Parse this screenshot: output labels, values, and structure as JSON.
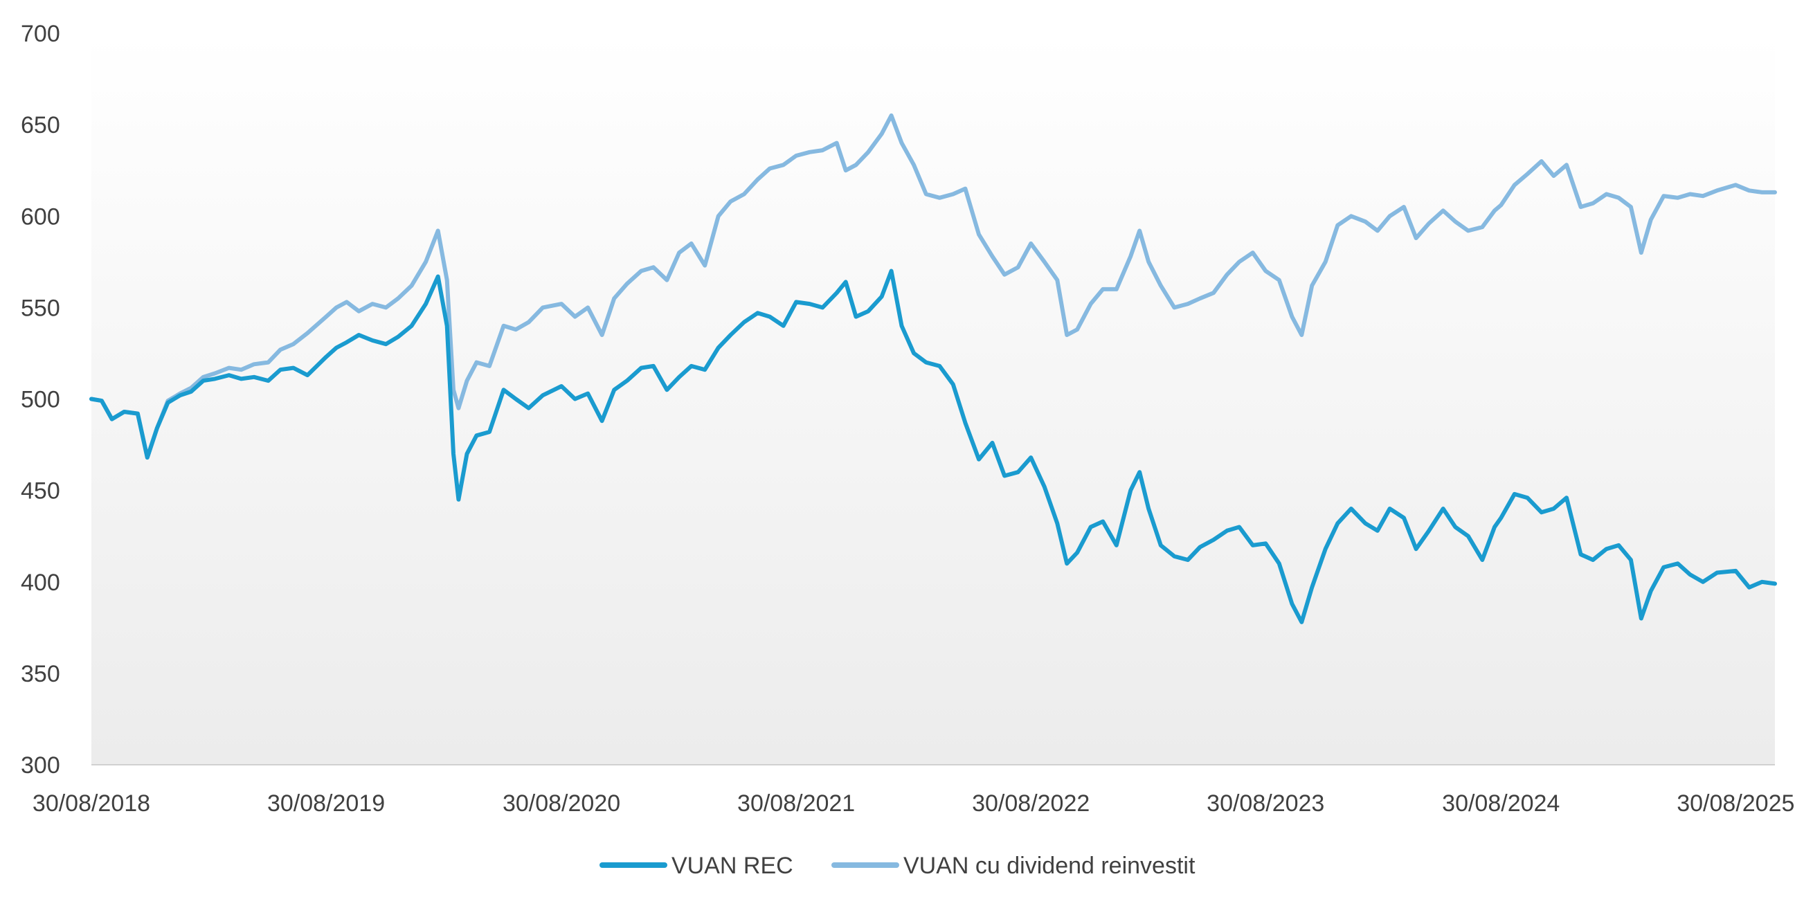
{
  "chart_data": {
    "type": "line",
    "title": "",
    "xlabel": "",
    "ylabel": "",
    "ylim": [
      300,
      700
    ],
    "yticks": [
      300,
      350,
      400,
      450,
      500,
      550,
      600,
      650,
      700
    ],
    "x_range": [
      "30/08/2018",
      "30/10/2025"
    ],
    "xticks": [
      "30/08/2018",
      "30/08/2019",
      "30/08/2020",
      "30/08/2021",
      "30/08/2022",
      "30/08/2023",
      "30/08/2024",
      "30/08/2025"
    ],
    "grid": false,
    "legend_position": "bottom",
    "background": "gradient white to light gray",
    "series": [
      {
        "name": "VUAN REC",
        "color": "#1a9bcf",
        "points": [
          [
            "30/08/2018",
            500
          ],
          [
            "15/09/2018",
            499
          ],
          [
            "01/10/2018",
            489
          ],
          [
            "20/10/2018",
            493
          ],
          [
            "10/11/2018",
            492
          ],
          [
            "25/11/2018",
            468
          ],
          [
            "10/12/2018",
            484
          ],
          [
            "27/12/2018",
            498
          ],
          [
            "15/01/2019",
            502
          ],
          [
            "01/02/2019",
            504
          ],
          [
            "20/02/2019",
            510
          ],
          [
            "10/03/2019",
            511
          ],
          [
            "01/04/2019",
            513
          ],
          [
            "20/04/2019",
            511
          ],
          [
            "10/05/2019",
            512
          ],
          [
            "01/06/2019",
            510
          ],
          [
            "20/06/2019",
            516
          ],
          [
            "10/07/2019",
            517
          ],
          [
            "01/08/2019",
            513
          ],
          [
            "30/08/2019",
            523
          ],
          [
            "15/09/2019",
            528
          ],
          [
            "01/10/2019",
            531
          ],
          [
            "20/10/2019",
            535
          ],
          [
            "10/11/2019",
            532
          ],
          [
            "01/12/2019",
            530
          ],
          [
            "20/12/2019",
            534
          ],
          [
            "10/01/2020",
            540
          ],
          [
            "01/02/2020",
            552
          ],
          [
            "20/02/2020",
            567
          ],
          [
            "05/03/2020",
            540
          ],
          [
            "15/03/2020",
            470
          ],
          [
            "23/03/2020",
            445
          ],
          [
            "05/04/2020",
            470
          ],
          [
            "20/04/2020",
            480
          ],
          [
            "10/05/2020",
            482
          ],
          [
            "01/06/2020",
            505
          ],
          [
            "20/06/2020",
            500
          ],
          [
            "10/07/2020",
            495
          ],
          [
            "01/08/2020",
            502
          ],
          [
            "30/08/2020",
            507
          ],
          [
            "20/09/2020",
            500
          ],
          [
            "10/10/2020",
            503
          ],
          [
            "01/11/2020",
            488
          ],
          [
            "20/11/2020",
            505
          ],
          [
            "10/12/2020",
            510
          ],
          [
            "01/01/2021",
            517
          ],
          [
            "20/01/2021",
            518
          ],
          [
            "10/02/2021",
            505
          ],
          [
            "01/03/2021",
            512
          ],
          [
            "20/03/2021",
            518
          ],
          [
            "10/04/2021",
            516
          ],
          [
            "01/05/2021",
            528
          ],
          [
            "20/05/2021",
            535
          ],
          [
            "10/06/2021",
            542
          ],
          [
            "01/07/2021",
            547
          ],
          [
            "20/07/2021",
            545
          ],
          [
            "10/08/2021",
            540
          ],
          [
            "30/08/2021",
            553
          ],
          [
            "20/09/2021",
            552
          ],
          [
            "10/10/2021",
            550
          ],
          [
            "01/11/2021",
            558
          ],
          [
            "15/11/2021",
            564
          ],
          [
            "01/12/2021",
            545
          ],
          [
            "20/12/2021",
            548
          ],
          [
            "10/01/2022",
            556
          ],
          [
            "25/01/2022",
            570
          ],
          [
            "10/02/2022",
            540
          ],
          [
            "01/03/2022",
            525
          ],
          [
            "20/03/2022",
            520
          ],
          [
            "10/04/2022",
            518
          ],
          [
            "01/05/2022",
            508
          ],
          [
            "20/05/2022",
            487
          ],
          [
            "10/06/2022",
            467
          ],
          [
            "01/07/2022",
            476
          ],
          [
            "20/07/2022",
            458
          ],
          [
            "10/08/2022",
            460
          ],
          [
            "30/08/2022",
            468
          ],
          [
            "20/09/2022",
            452
          ],
          [
            "10/10/2022",
            432
          ],
          [
            "25/10/2022",
            410
          ],
          [
            "10/11/2022",
            416
          ],
          [
            "01/12/2022",
            430
          ],
          [
            "20/12/2022",
            433
          ],
          [
            "10/01/2023",
            420
          ],
          [
            "01/02/2023",
            450
          ],
          [
            "15/02/2023",
            460
          ],
          [
            "01/03/2023",
            440
          ],
          [
            "20/03/2023",
            420
          ],
          [
            "10/04/2023",
            414
          ],
          [
            "01/05/2023",
            412
          ],
          [
            "20/05/2023",
            419
          ],
          [
            "10/06/2023",
            423
          ],
          [
            "01/07/2023",
            428
          ],
          [
            "20/07/2023",
            430
          ],
          [
            "10/08/2023",
            420
          ],
          [
            "30/08/2023",
            421
          ],
          [
            "20/09/2023",
            410
          ],
          [
            "10/10/2023",
            388
          ],
          [
            "25/10/2023",
            378
          ],
          [
            "10/11/2023",
            397
          ],
          [
            "01/12/2023",
            418
          ],
          [
            "20/12/2023",
            432
          ],
          [
            "10/01/2024",
            440
          ],
          [
            "01/02/2024",
            432
          ],
          [
            "20/02/2024",
            428
          ],
          [
            "10/03/2024",
            440
          ],
          [
            "01/04/2024",
            435
          ],
          [
            "20/04/2024",
            418
          ],
          [
            "10/05/2024",
            428
          ],
          [
            "01/06/2024",
            440
          ],
          [
            "20/06/2024",
            430
          ],
          [
            "10/07/2024",
            425
          ],
          [
            "01/08/2024",
            412
          ],
          [
            "20/08/2024",
            430
          ],
          [
            "30/08/2024",
            435
          ],
          [
            "20/09/2024",
            448
          ],
          [
            "10/10/2024",
            446
          ],
          [
            "01/11/2024",
            438
          ],
          [
            "20/11/2024",
            440
          ],
          [
            "10/12/2024",
            446
          ],
          [
            "01/01/2025",
            415
          ],
          [
            "20/01/2025",
            412
          ],
          [
            "10/02/2025",
            418
          ],
          [
            "01/03/2025",
            420
          ],
          [
            "20/03/2025",
            412
          ],
          [
            "05/04/2025",
            380
          ],
          [
            "20/04/2025",
            395
          ],
          [
            "10/05/2025",
            408
          ],
          [
            "01/06/2025",
            410
          ],
          [
            "20/06/2025",
            404
          ],
          [
            "10/07/2025",
            400
          ],
          [
            "01/08/2025",
            405
          ],
          [
            "30/08/2025",
            406
          ],
          [
            "20/09/2025",
            397
          ],
          [
            "10/10/2025",
            400
          ],
          [
            "30/10/2025",
            399
          ]
        ]
      },
      {
        "name": "VUAN cu dividend reinvestit",
        "color": "#86b9e0",
        "points": [
          [
            "30/08/2018",
            500
          ],
          [
            "15/09/2018",
            499
          ],
          [
            "01/10/2018",
            489
          ],
          [
            "20/10/2018",
            493
          ],
          [
            "10/11/2018",
            492
          ],
          [
            "25/11/2018",
            468
          ],
          [
            "10/12/2018",
            484
          ],
          [
            "27/12/2018",
            499
          ],
          [
            "15/01/2019",
            503
          ],
          [
            "01/02/2019",
            506
          ],
          [
            "20/02/2019",
            512
          ],
          [
            "10/03/2019",
            514
          ],
          [
            "01/04/2019",
            517
          ],
          [
            "20/04/2019",
            516
          ],
          [
            "10/05/2019",
            519
          ],
          [
            "01/06/2019",
            520
          ],
          [
            "20/06/2019",
            527
          ],
          [
            "10/07/2019",
            530
          ],
          [
            "01/08/2019",
            536
          ],
          [
            "30/08/2019",
            545
          ],
          [
            "15/09/2019",
            550
          ],
          [
            "01/10/2019",
            553
          ],
          [
            "20/10/2019",
            548
          ],
          [
            "10/11/2019",
            552
          ],
          [
            "01/12/2019",
            550
          ],
          [
            "20/12/2019",
            555
          ],
          [
            "10/01/2020",
            562
          ],
          [
            "01/02/2020",
            575
          ],
          [
            "20/02/2020",
            592
          ],
          [
            "05/03/2020",
            565
          ],
          [
            "15/03/2020",
            505
          ],
          [
            "23/03/2020",
            495
          ],
          [
            "05/04/2020",
            510
          ],
          [
            "20/04/2020",
            520
          ],
          [
            "10/05/2020",
            518
          ],
          [
            "01/06/2020",
            540
          ],
          [
            "20/06/2020",
            538
          ],
          [
            "10/07/2020",
            542
          ],
          [
            "01/08/2020",
            550
          ],
          [
            "30/08/2020",
            552
          ],
          [
            "20/09/2020",
            545
          ],
          [
            "10/10/2020",
            550
          ],
          [
            "01/11/2020",
            535
          ],
          [
            "20/11/2020",
            555
          ],
          [
            "10/12/2020",
            563
          ],
          [
            "01/01/2021",
            570
          ],
          [
            "20/01/2021",
            572
          ],
          [
            "10/02/2021",
            565
          ],
          [
            "01/03/2021",
            580
          ],
          [
            "20/03/2021",
            585
          ],
          [
            "10/04/2021",
            573
          ],
          [
            "01/05/2021",
            600
          ],
          [
            "20/05/2021",
            608
          ],
          [
            "10/06/2021",
            612
          ],
          [
            "01/07/2021",
            620
          ],
          [
            "20/07/2021",
            626
          ],
          [
            "10/08/2021",
            628
          ],
          [
            "30/08/2021",
            633
          ],
          [
            "20/09/2021",
            635
          ],
          [
            "10/10/2021",
            636
          ],
          [
            "01/11/2021",
            640
          ],
          [
            "15/11/2021",
            625
          ],
          [
            "01/12/2021",
            628
          ],
          [
            "20/12/2021",
            635
          ],
          [
            "10/01/2022",
            645
          ],
          [
            "25/01/2022",
            655
          ],
          [
            "10/02/2022",
            640
          ],
          [
            "01/03/2022",
            628
          ],
          [
            "20/03/2022",
            612
          ],
          [
            "10/04/2022",
            610
          ],
          [
            "01/05/2022",
            612
          ],
          [
            "20/05/2022",
            615
          ],
          [
            "10/06/2022",
            590
          ],
          [
            "01/07/2022",
            578
          ],
          [
            "20/07/2022",
            568
          ],
          [
            "10/08/2022",
            572
          ],
          [
            "30/08/2022",
            585
          ],
          [
            "20/09/2022",
            575
          ],
          [
            "10/10/2022",
            565
          ],
          [
            "25/10/2022",
            535
          ],
          [
            "10/11/2022",
            538
          ],
          [
            "01/12/2022",
            552
          ],
          [
            "20/12/2022",
            560
          ],
          [
            "10/01/2023",
            560
          ],
          [
            "01/02/2023",
            578
          ],
          [
            "15/02/2023",
            592
          ],
          [
            "01/03/2023",
            575
          ],
          [
            "20/03/2023",
            562
          ],
          [
            "10/04/2023",
            550
          ],
          [
            "01/05/2023",
            552
          ],
          [
            "20/05/2023",
            555
          ],
          [
            "10/06/2023",
            558
          ],
          [
            "01/07/2023",
            568
          ],
          [
            "20/07/2023",
            575
          ],
          [
            "10/08/2023",
            580
          ],
          [
            "30/08/2023",
            570
          ],
          [
            "20/09/2023",
            565
          ],
          [
            "10/10/2023",
            545
          ],
          [
            "25/10/2023",
            535
          ],
          [
            "10/11/2023",
            562
          ],
          [
            "01/12/2023",
            575
          ],
          [
            "20/12/2023",
            595
          ],
          [
            "10/01/2024",
            600
          ],
          [
            "01/02/2024",
            597
          ],
          [
            "20/02/2024",
            592
          ],
          [
            "10/03/2024",
            600
          ],
          [
            "01/04/2024",
            605
          ],
          [
            "20/04/2024",
            588
          ],
          [
            "10/05/2024",
            596
          ],
          [
            "01/06/2024",
            603
          ],
          [
            "20/06/2024",
            597
          ],
          [
            "10/07/2024",
            592
          ],
          [
            "01/08/2024",
            594
          ],
          [
            "20/08/2024",
            603
          ],
          [
            "30/08/2024",
            606
          ],
          [
            "20/09/2024",
            617
          ],
          [
            "10/10/2024",
            623
          ],
          [
            "01/11/2024",
            630
          ],
          [
            "20/11/2024",
            622
          ],
          [
            "10/12/2024",
            628
          ],
          [
            "01/01/2025",
            605
          ],
          [
            "20/01/2025",
            607
          ],
          [
            "10/02/2025",
            612
          ],
          [
            "01/03/2025",
            610
          ],
          [
            "20/03/2025",
            605
          ],
          [
            "05/04/2025",
            580
          ],
          [
            "20/04/2025",
            598
          ],
          [
            "10/05/2025",
            611
          ],
          [
            "01/06/2025",
            610
          ],
          [
            "20/06/2025",
            612
          ],
          [
            "10/07/2025",
            611
          ],
          [
            "01/08/2025",
            614
          ],
          [
            "30/08/2025",
            617
          ],
          [
            "20/09/2025",
            614
          ],
          [
            "10/10/2025",
            613
          ],
          [
            "30/10/2025",
            613
          ]
        ]
      }
    ]
  }
}
